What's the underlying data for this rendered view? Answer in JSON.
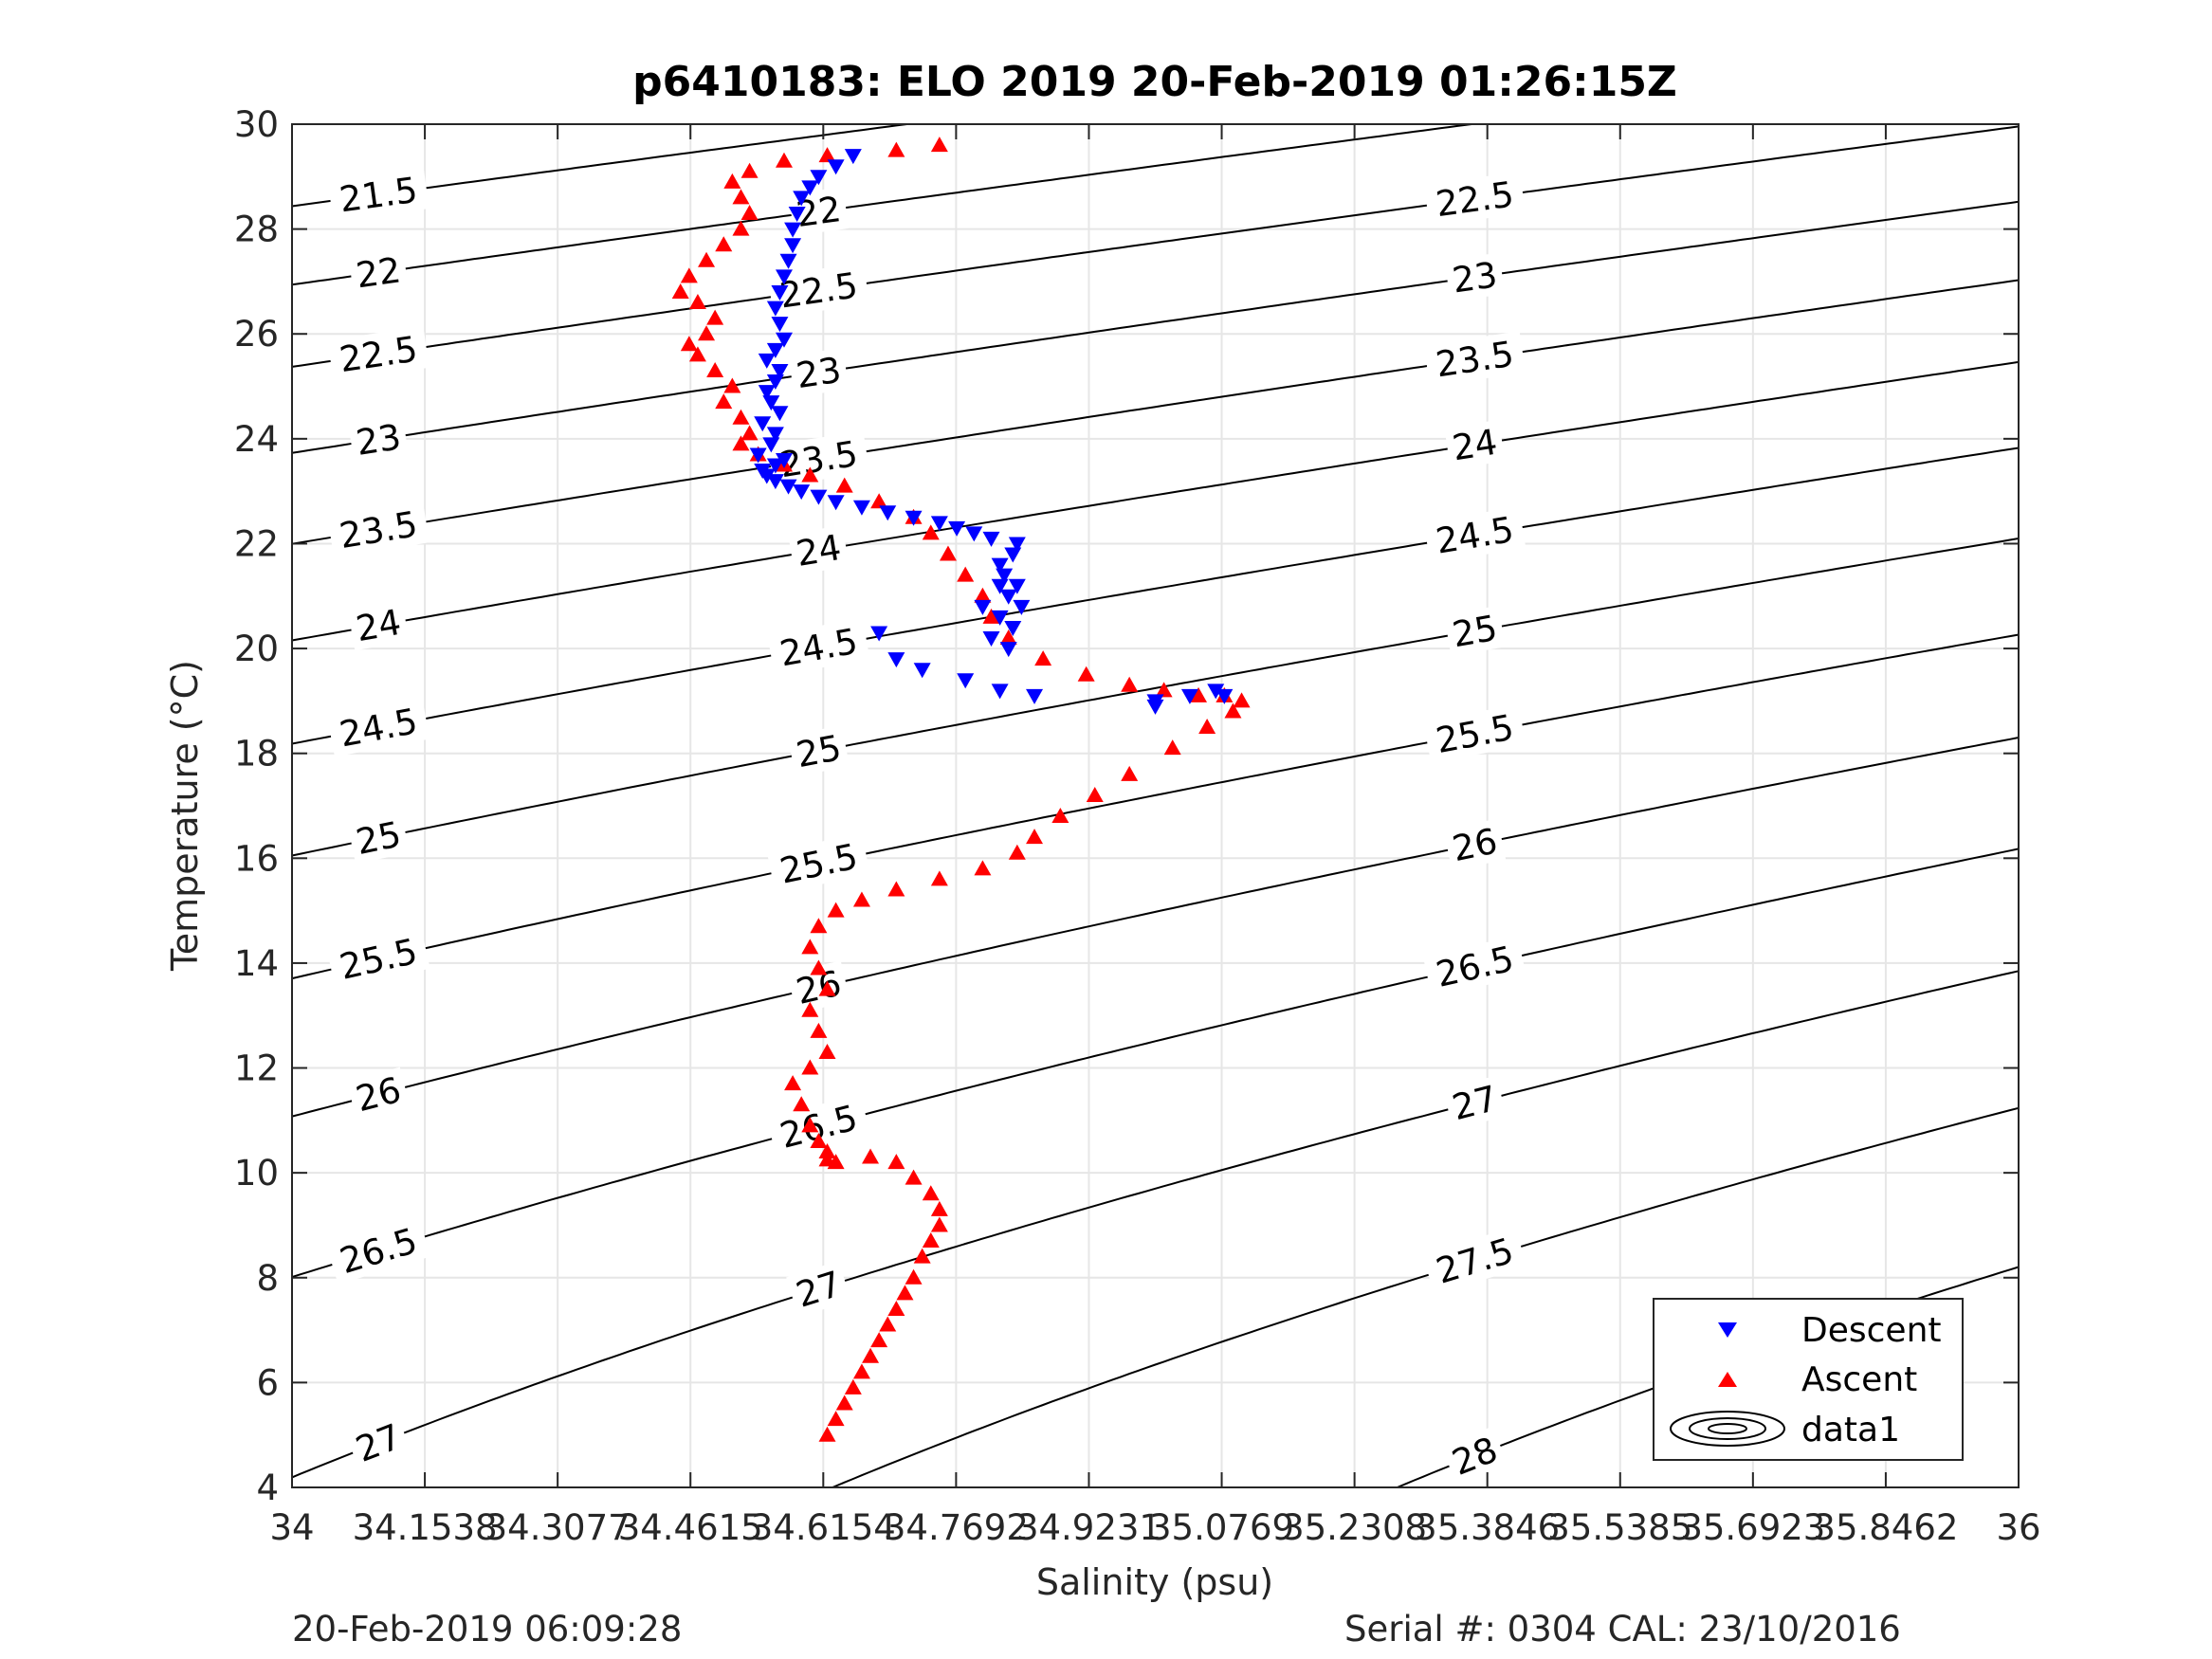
{
  "chart_data": {
    "type": "scatter",
    "title": "p6410183: ELO 2019 20-Feb-2019 01:26:15Z",
    "xlabel": "Salinity (psu)",
    "ylabel": "Temperature (°C)",
    "xlim": [
      34,
      36
    ],
    "ylim": [
      4,
      30
    ],
    "xticks": [
      "34",
      "34.1538",
      "34.3077",
      "34.4615",
      "34.6154",
      "34.7692",
      "34.9231",
      "35.0769",
      "35.2308",
      "35.3846",
      "35.5385",
      "35.6923",
      "35.8462",
      "36"
    ],
    "yticks": [
      "4",
      "6",
      "8",
      "10",
      "12",
      "14",
      "16",
      "18",
      "20",
      "22",
      "24",
      "26",
      "28",
      "30"
    ],
    "grid": true,
    "legend": {
      "position": "bottom-right",
      "entries": [
        "Descent",
        "Ascent",
        "data1"
      ]
    },
    "colors": {
      "descent": "#0000ff",
      "ascent": "#ff0000",
      "contour": "#000000",
      "grid": "#e6e6e6",
      "axis": "#262626"
    },
    "series": [
      {
        "name": "Descent",
        "marker": "triangle-down",
        "x": [
          34.65,
          34.63,
          34.61,
          34.6,
          34.59,
          34.585,
          34.58,
          34.58,
          34.575,
          34.57,
          34.565,
          34.56,
          34.565,
          34.57,
          34.56,
          34.55,
          34.565,
          34.56,
          34.55,
          34.555,
          34.565,
          34.545,
          34.56,
          34.555,
          34.54,
          34.57,
          34.56,
          34.545,
          34.55,
          34.56,
          34.575,
          34.59,
          34.61,
          34.63,
          34.66,
          34.69,
          34.72,
          34.75,
          34.77,
          34.79,
          34.81,
          34.84,
          34.835,
          34.82,
          34.825,
          34.84,
          34.83,
          34.845,
          34.82,
          34.835,
          34.81,
          34.83,
          34.8,
          34.82,
          34.68,
          34.7,
          34.73,
          34.78,
          34.82,
          34.86,
          35.0,
          35.04,
          35.07,
          35.08,
          35.0
        ],
        "y": [
          29.4,
          29.2,
          29.0,
          28.8,
          28.6,
          28.3,
          28.0,
          27.7,
          27.4,
          27.1,
          26.8,
          26.5,
          26.2,
          25.9,
          25.7,
          25.5,
          25.3,
          25.1,
          24.9,
          24.7,
          24.5,
          24.3,
          24.1,
          23.9,
          23.7,
          23.6,
          23.5,
          23.4,
          23.3,
          23.2,
          23.1,
          23.0,
          22.9,
          22.8,
          22.7,
          22.6,
          22.5,
          22.4,
          22.3,
          22.2,
          22.1,
          22.0,
          21.8,
          21.6,
          21.4,
          21.2,
          21.0,
          20.8,
          20.6,
          20.4,
          20.2,
          20.0,
          20.8,
          21.2,
          20.3,
          19.8,
          19.6,
          19.4,
          19.2,
          19.1,
          19.0,
          19.1,
          19.2,
          19.1,
          18.9
        ]
      },
      {
        "name": "Ascent",
        "marker": "triangle-up",
        "x": [
          34.75,
          34.7,
          34.62,
          34.57,
          34.53,
          34.51,
          34.52,
          34.53,
          34.52,
          34.5,
          34.48,
          34.46,
          34.45,
          34.47,
          34.49,
          34.48,
          34.46,
          34.47,
          34.49,
          34.51,
          34.5,
          34.52,
          34.53,
          34.52,
          34.54,
          34.57,
          34.6,
          34.64,
          34.68,
          34.72,
          34.74,
          34.76,
          34.78,
          34.8,
          34.81,
          34.83,
          34.87,
          34.92,
          34.97,
          35.01,
          35.05,
          35.08,
          35.1,
          35.09,
          35.06,
          35.02,
          34.97,
          34.93,
          34.89,
          34.86,
          34.84,
          34.8,
          34.75,
          34.7,
          34.66,
          34.63,
          34.61,
          34.6,
          34.61,
          34.62,
          34.6,
          34.61,
          34.62,
          34.6,
          34.58,
          34.59,
          34.6,
          34.61,
          34.62,
          34.62,
          34.63,
          34.67,
          34.7,
          34.72,
          34.74,
          34.75,
          34.75,
          34.74,
          34.73,
          34.72,
          34.71,
          34.7,
          34.69,
          34.68,
          34.67,
          34.66,
          34.65,
          34.64,
          34.63,
          34.62
        ],
        "y": [
          29.6,
          29.5,
          29.4,
          29.3,
          29.1,
          28.9,
          28.6,
          28.3,
          28.0,
          27.7,
          27.4,
          27.1,
          26.8,
          26.6,
          26.3,
          26.0,
          25.8,
          25.6,
          25.3,
          25.0,
          24.7,
          24.4,
          24.1,
          23.9,
          23.7,
          23.5,
          23.3,
          23.1,
          22.8,
          22.5,
          22.2,
          21.8,
          21.4,
          21.0,
          20.6,
          20.2,
          19.8,
          19.5,
          19.3,
          19.2,
          19.1,
          19.1,
          19.0,
          18.8,
          18.5,
          18.1,
          17.6,
          17.2,
          16.8,
          16.4,
          16.1,
          15.8,
          15.6,
          15.4,
          15.2,
          15.0,
          14.7,
          14.3,
          13.9,
          13.5,
          13.1,
          12.7,
          12.3,
          12.0,
          11.7,
          11.3,
          10.9,
          10.6,
          10.4,
          10.25,
          10.2,
          10.3,
          10.2,
          9.9,
          9.6,
          9.3,
          9.0,
          8.7,
          8.4,
          8.0,
          7.7,
          7.4,
          7.1,
          6.8,
          6.5,
          6.2,
          5.9,
          5.6,
          5.3,
          5.0
        ]
      }
    ],
    "sigma_contours": [
      "21.5",
      "22",
      "22.5",
      "23",
      "23.5",
      "24",
      "24.5",
      "25",
      "25.5",
      "26",
      "26.5",
      "27",
      "27.5",
      "28"
    ]
  },
  "footer": {
    "timestamp": "20-Feb-2019 06:09:28",
    "serial": "Serial #: 0304  CAL: 23/10/2016"
  }
}
